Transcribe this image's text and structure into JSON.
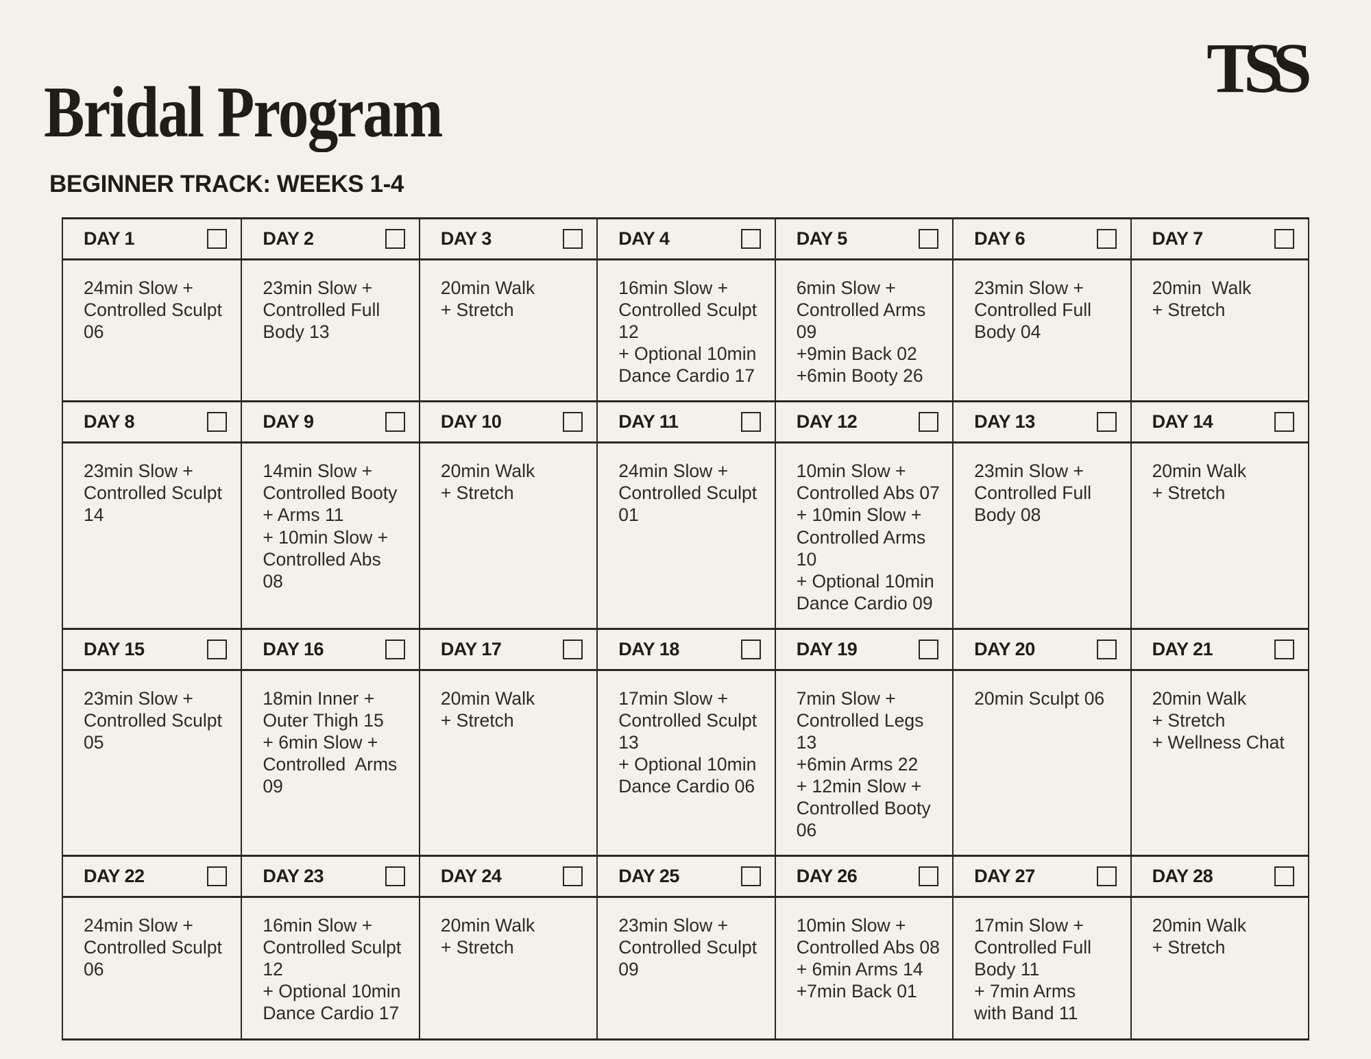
{
  "page": {
    "title": "Bridal Program",
    "logo": "TSS",
    "subtitle": "BEGINNER TRACK: WEEKS 1-4"
  },
  "colors": {
    "background": "#F2F1EC",
    "ink": "#211D15",
    "body_text": "#2E2A23",
    "line": "#2B2721"
  },
  "calendar": {
    "days": [
      {
        "label": "DAY 1",
        "checked": false,
        "workout": "24min Slow +\nControlled Sculpt\n06"
      },
      {
        "label": "DAY 2",
        "checked": false,
        "workout": "23min Slow +\nControlled Full\nBody 13"
      },
      {
        "label": "DAY 3",
        "checked": false,
        "workout": "20min Walk\n+ Stretch"
      },
      {
        "label": "DAY 4",
        "checked": false,
        "workout": "16min Slow +\nControlled Sculpt\n12\n+ Optional 10min\nDance Cardio 17"
      },
      {
        "label": "DAY 5",
        "checked": false,
        "workout": "6min Slow +\nControlled Arms\n09\n+9min Back 02\n+6min Booty 26"
      },
      {
        "label": "DAY 6",
        "checked": false,
        "workout": "23min Slow +\nControlled Full\nBody 04"
      },
      {
        "label": "DAY 7",
        "checked": false,
        "workout": "20min  Walk\n+ Stretch"
      },
      {
        "label": "DAY 8",
        "checked": false,
        "workout": "23min Slow +\nControlled Sculpt\n14"
      },
      {
        "label": "DAY 9",
        "checked": false,
        "workout": "14min Slow +\nControlled Booty\n+ Arms 11\n+ 10min Slow +\nControlled Abs\n08"
      },
      {
        "label": "DAY 10",
        "checked": false,
        "workout": "20min Walk\n+ Stretch"
      },
      {
        "label": "DAY 11",
        "checked": false,
        "workout": "24min Slow +\nControlled Sculpt\n01"
      },
      {
        "label": "DAY 12",
        "checked": false,
        "workout": "10min Slow +\nControlled Abs 07\n+ 10min Slow +\nControlled Arms 10\n+ Optional 10min\nDance Cardio 09"
      },
      {
        "label": "DAY 13",
        "checked": false,
        "workout": "23min Slow +\nControlled Full\nBody 08"
      },
      {
        "label": "DAY 14",
        "checked": false,
        "workout": "20min Walk\n+ Stretch"
      },
      {
        "label": "DAY 15",
        "checked": false,
        "workout": "23min Slow +\nControlled Sculpt\n05"
      },
      {
        "label": "DAY 16",
        "checked": false,
        "workout": "18min Inner +\nOuter Thigh 15\n+ 6min Slow +\nControlled  Arms\n09"
      },
      {
        "label": "DAY 17",
        "checked": false,
        "workout": "20min Walk\n+ Stretch"
      },
      {
        "label": "DAY 18",
        "checked": false,
        "workout": "17min Slow +\nControlled Sculpt\n13\n+ Optional 10min\nDance Cardio 06"
      },
      {
        "label": "DAY 19",
        "checked": false,
        "workout": "7min Slow +\nControlled Legs 13\n+6min Arms 22\n+ 12min Slow +\nControlled Booty 06"
      },
      {
        "label": "DAY 20",
        "checked": false,
        "workout": "20min Sculpt 06"
      },
      {
        "label": "DAY 21",
        "checked": false,
        "workout": "20min Walk\n+ Stretch\n+ Wellness Chat"
      },
      {
        "label": "DAY 22",
        "checked": false,
        "workout": "24min Slow +\nControlled Sculpt\n06"
      },
      {
        "label": "DAY 23",
        "checked": false,
        "workout": "16min Slow +\nControlled Sculpt\n12\n+ Optional 10min\nDance Cardio 17"
      },
      {
        "label": "DAY 24",
        "checked": false,
        "workout": "20min Walk\n+ Stretch"
      },
      {
        "label": "DAY 25",
        "checked": false,
        "workout": "23min Slow +\nControlled Sculpt\n09"
      },
      {
        "label": "DAY 26",
        "checked": false,
        "workout": "10min Slow +\nControlled Abs 08\n+ 6min Arms 14\n+7min Back 01"
      },
      {
        "label": "DAY 27",
        "checked": false,
        "workout": "17min Slow +\nControlled Full\nBody 11\n+ 7min Arms\nwith Band 11"
      },
      {
        "label": "DAY 28",
        "checked": false,
        "workout": "20min Walk\n+ Stretch"
      }
    ]
  }
}
